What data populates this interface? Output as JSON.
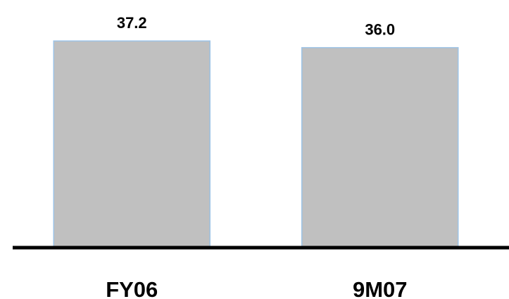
{
  "chart_data": {
    "type": "bar",
    "categories": [
      "FY06",
      "9M07"
    ],
    "values": [
      37.2,
      36.0
    ],
    "value_labels": [
      "37.2",
      "36.0"
    ],
    "title": "",
    "xlabel": "",
    "ylabel": "",
    "ylim": [
      0,
      39
    ],
    "grid": false,
    "legend": "none"
  },
  "colors": {
    "bar_fill": "#c0c0c0",
    "bar_outline": "#9dc3e6",
    "axis": "#000000"
  }
}
